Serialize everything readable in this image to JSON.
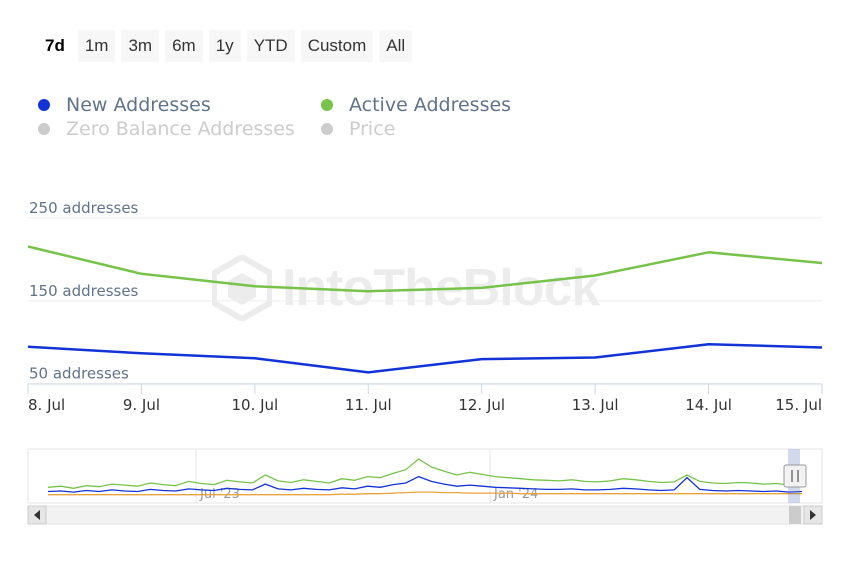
{
  "range_buttons": [
    "7d",
    "1m",
    "3m",
    "6m",
    "1y",
    "YTD",
    "Custom",
    "All"
  ],
  "active_range": "7d",
  "legend": [
    {
      "label": "New Addresses",
      "color": "#1233d6",
      "enabled": true
    },
    {
      "label": "Active Addresses",
      "color": "#77c34a",
      "enabled": true
    },
    {
      "label": "Zero Balance Addresses",
      "color": "#cccccc",
      "enabled": false
    },
    {
      "label": "Price",
      "color": "#cccccc",
      "enabled": false
    }
  ],
  "watermark": "IntoTheBlock",
  "chart_data": {
    "type": "line",
    "x": [
      "8. Jul",
      "9. Jul",
      "10. Jul",
      "11. Jul",
      "12. Jul",
      "13. Jul",
      "14. Jul",
      "15. Jul"
    ],
    "y_tick_labels": [
      "250 addresses",
      "150 addresses",
      "50 addresses"
    ],
    "y_ticks": [
      250,
      150,
      50
    ],
    "ylim": [
      40,
      250
    ],
    "grid": true,
    "legend_position": "top-left",
    "series": [
      {
        "name": "New Addresses",
        "color": "#1233d6",
        "values": [
          85,
          77,
          71,
          54,
          70,
          72,
          88,
          84
        ]
      },
      {
        "name": "Active Addresses",
        "color": "#77c34a",
        "values": [
          206,
          173,
          158,
          152,
          156,
          171,
          199,
          186
        ]
      }
    ],
    "navigator": {
      "labels": [
        "Jul '23",
        "Jan '24"
      ],
      "series": [
        {
          "name": "Active Addresses",
          "color": "#77c34a",
          "values": [
            22,
            24,
            20,
            25,
            23,
            28,
            26,
            24,
            30,
            27,
            25,
            33,
            29,
            27,
            35,
            32,
            30,
            45,
            34,
            31,
            36,
            33,
            30,
            38,
            35,
            42,
            40,
            48,
            55,
            75,
            60,
            52,
            45,
            50,
            46,
            42,
            40,
            38,
            36,
            35,
            34,
            36,
            33,
            32,
            34,
            38,
            36,
            33,
            31,
            32,
            45,
            33,
            30,
            29,
            31,
            30,
            28,
            29,
            26,
            27
          ]
        },
        {
          "name": "New Addresses",
          "color": "#1233d6",
          "values": [
            14,
            15,
            13,
            16,
            14,
            17,
            15,
            14,
            18,
            16,
            15,
            19,
            17,
            16,
            20,
            18,
            17,
            28,
            19,
            17,
            20,
            18,
            17,
            21,
            19,
            24,
            22,
            27,
            30,
            42,
            33,
            28,
            24,
            26,
            24,
            22,
            21,
            20,
            19,
            18,
            18,
            19,
            17,
            17,
            18,
            20,
            19,
            17,
            16,
            17,
            40,
            18,
            16,
            15,
            16,
            15,
            14,
            15,
            13,
            14
          ]
        },
        {
          "name": "Price",
          "color": "#e8a33d",
          "values": [
            8,
            8,
            8,
            8,
            8,
            8,
            8,
            8,
            8,
            8,
            8,
            8,
            8,
            8,
            8,
            8,
            8,
            8,
            8,
            8,
            8,
            8,
            8,
            9,
            9,
            10,
            10,
            11,
            12,
            13,
            13,
            12,
            12,
            11,
            11,
            11,
            11,
            10,
            10,
            10,
            10,
            10,
            10,
            10,
            10,
            10,
            10,
            10,
            10,
            10,
            10,
            10,
            10,
            10,
            10,
            10,
            10,
            10,
            10,
            10
          ]
        }
      ]
    }
  }
}
